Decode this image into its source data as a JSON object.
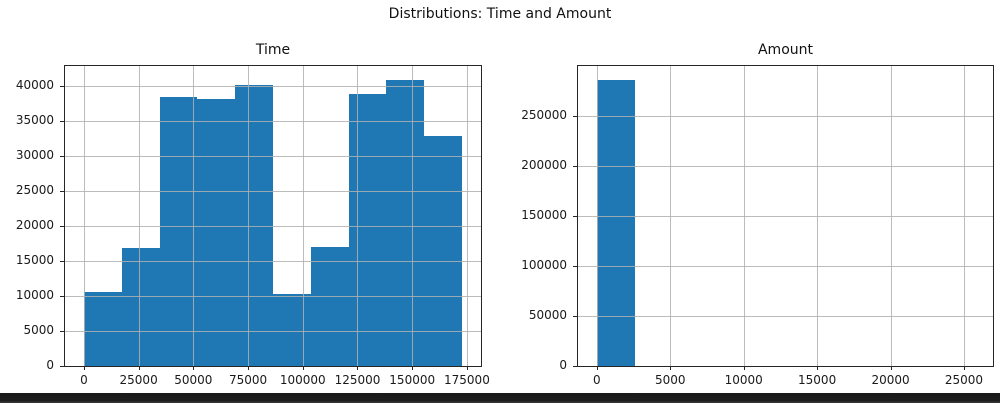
{
  "page": {
    "suptitle": "Distributions: Time and Amount"
  },
  "style": {
    "bar_color": "#1f77b4",
    "grid_color": "#b0b0b0",
    "spine_color": "#262626",
    "text_color": "#1a1a1a",
    "footer_bar_color": "#1d1d1d"
  },
  "chart_data": [
    {
      "type": "bar",
      "subtype": "histogram",
      "title": "Time",
      "bin_edges": [
        0,
        17279,
        34558,
        51838,
        69117,
        86396,
        103675,
        120955,
        138234,
        155513,
        172792
      ],
      "values": [
        10500,
        16900,
        38400,
        38150,
        40100,
        10350,
        17050,
        38800,
        40800,
        32850
      ],
      "xlim": [
        -8640,
        181432
      ],
      "ylim": [
        0,
        42840
      ],
      "xticks": [
        0,
        25000,
        50000,
        75000,
        100000,
        125000,
        150000,
        175000
      ],
      "yticks": [
        0,
        5000,
        10000,
        15000,
        20000,
        25000,
        30000,
        35000,
        40000
      ],
      "grid": true,
      "legend": null,
      "xlabel": "",
      "ylabel": ""
    },
    {
      "type": "bar",
      "subtype": "histogram",
      "title": "Amount",
      "bin_edges": [
        0,
        2569,
        5138,
        7707,
        10276,
        12846,
        15415,
        17984,
        20553,
        23122,
        25691
      ],
      "values": [
        285500,
        0,
        0,
        0,
        0,
        0,
        0,
        0,
        0,
        0
      ],
      "xlim": [
        -1285,
        26976
      ],
      "ylim": [
        0,
        299800
      ],
      "xticks": [
        0,
        5000,
        10000,
        15000,
        20000,
        25000
      ],
      "yticks": [
        0,
        50000,
        100000,
        150000,
        200000,
        250000
      ],
      "grid": true,
      "legend": null,
      "xlabel": "",
      "ylabel": ""
    }
  ]
}
